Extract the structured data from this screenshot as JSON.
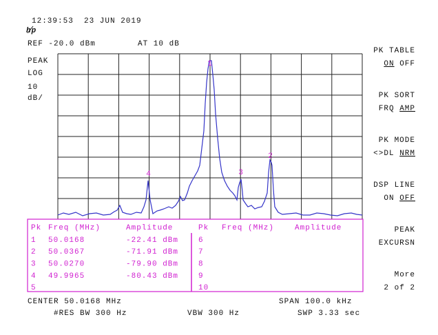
{
  "header": {
    "time": "12:39:53",
    "date": "23 JUN 2019",
    "ref": "REF -20.0 dBm",
    "atten": "AT 10 dB"
  },
  "scale": [
    "PEAK",
    "LOG",
    "10",
    "dB/"
  ],
  "softkeys": [
    {
      "label": "PK TABLE",
      "options": [
        "ON",
        "OFF"
      ],
      "selected": 0
    },
    {
      "label": "PK SORT",
      "options": [
        "FRQ",
        "AMP"
      ],
      "selected": 1
    },
    {
      "label": "PK MODE",
      "options": [
        "<>DL",
        "NRM"
      ],
      "selected": 1
    },
    {
      "label": "DSP LINE",
      "options": [
        "ON",
        "OFF"
      ],
      "selected": 1
    },
    {
      "label": "PEAK",
      "sub": "EXCURSN"
    },
    {
      "label": "More",
      "sub": "2 of 2"
    }
  ],
  "table": {
    "columns": [
      "Pk",
      "Freq (MHz)",
      "Amplitude",
      "Pk",
      "Freq (MHz)",
      "Amplitude"
    ],
    "rows": [
      {
        "pk": "1",
        "freq": "50.0168",
        "amp": "-22.41 dBm"
      },
      {
        "pk": "2",
        "freq": "50.0367",
        "amp": "-71.91 dBm"
      },
      {
        "pk": "3",
        "freq": "50.0270",
        "amp": "-79.90 dBm"
      },
      {
        "pk": "4",
        "freq": "49.9965",
        "amp": "-80.43 dBm"
      },
      {
        "pk": "5"
      },
      {
        "pk": "6"
      },
      {
        "pk": "7"
      },
      {
        "pk": "8"
      },
      {
        "pk": "9"
      },
      {
        "pk": "10"
      }
    ]
  },
  "footer": {
    "center": "CENTER 50.0168 MHz",
    "span": "SPAN 100.0 kHz",
    "rbw": "#RES BW 300 Hz",
    "vbw": "VBW 300 Hz",
    "sweep": "SWP 3.33 sec"
  }
}
